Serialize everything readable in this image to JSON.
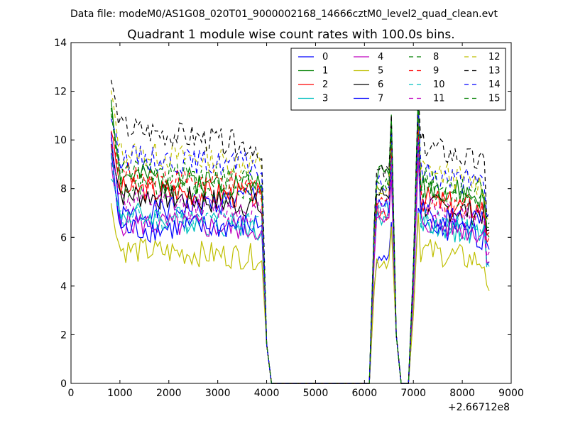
{
  "header": {
    "subtitle": "Data file: modeM0/AS1G08_020T01_9000002168_14666cztM0_level2_quad_clean.evt"
  },
  "chart_data": {
    "type": "line",
    "title": "Quadrant 1 module wise count rates with 100.0s bins.",
    "xlabel": "",
    "ylabel": "",
    "x_offset_label": "+2.66712e8",
    "xlim": [
      0,
      9000
    ],
    "ylim": [
      0,
      14
    ],
    "x_ticks": [
      0,
      1000,
      2000,
      3000,
      4000,
      5000,
      6000,
      7000,
      8000,
      9000
    ],
    "y_ticks": [
      0,
      2,
      4,
      6,
      8,
      10,
      12,
      14
    ],
    "legend_position": "top-right",
    "legend_columns": 4,
    "series": [
      {
        "name": "0",
        "color": "#0000ff",
        "dash": "solid",
        "seed": 1,
        "levels": {
          "a": 10.3,
          "b": 6.8,
          "c": 10.0,
          "d": 8.3,
          "e": 7.2,
          "f": 6.4,
          "g": 5.0
        }
      },
      {
        "name": "1",
        "color": "#008000",
        "dash": "solid",
        "seed": 2,
        "levels": {
          "a": 11.7,
          "b": 8.5,
          "c": 9.5,
          "d": 8.0,
          "e": 12.0,
          "f": 8.2,
          "g": 6.0
        }
      },
      {
        "name": "2",
        "color": "#ff0000",
        "dash": "solid",
        "seed": 3,
        "levels": {
          "a": 10.5,
          "b": 8.0,
          "c": 9.8,
          "d": 7.5,
          "e": 9.8,
          "f": 7.6,
          "g": 6.2
        }
      },
      {
        "name": "3",
        "color": "#00bfbf",
        "dash": "solid",
        "seed": 4,
        "levels": {
          "a": 8.6,
          "b": 7.0,
          "c": 9.6,
          "d": 6.0,
          "e": 9.5,
          "f": 6.6,
          "g": 4.8
        }
      },
      {
        "name": "4",
        "color": "#bf00bf",
        "dash": "solid",
        "seed": 5,
        "levels": {
          "a": 8.9,
          "b": 6.6,
          "c": 9.6,
          "d": 6.2,
          "e": 9.2,
          "f": 6.7,
          "g": 5.0
        }
      },
      {
        "name": "5",
        "color": "#bfbf00",
        "dash": "solid",
        "seed": 6,
        "levels": {
          "a": 7.3,
          "b": 5.5,
          "c": 5.5,
          "d": 5.0,
          "e": 7.0,
          "f": 5.5,
          "g": 3.8
        }
      },
      {
        "name": "6",
        "color": "#000000",
        "dash": "solid",
        "seed": 7,
        "levels": {
          "a": 9.8,
          "b": 7.8,
          "c": 9.0,
          "d": 7.0,
          "e": 10.8,
          "f": 7.3,
          "g": 6.3
        }
      },
      {
        "name": "7",
        "color": "#0000ff",
        "dash": "solid",
        "seed": 8,
        "levels": {
          "a": 9.5,
          "b": 6.3,
          "c": 10.2,
          "d": 6.6,
          "e": 10.2,
          "f": 7.0,
          "g": 5.5
        }
      },
      {
        "name": "8",
        "color": "#008000",
        "dash": "dashed",
        "seed": 9,
        "levels": {
          "a": 11.2,
          "b": 8.0,
          "c": 9.8,
          "d": 7.8,
          "e": 11.5,
          "f": 8.0,
          "g": 6.4
        }
      },
      {
        "name": "9",
        "color": "#ff0000",
        "dash": "dashed",
        "seed": 10,
        "levels": {
          "a": 10.0,
          "b": 8.6,
          "c": 9.4,
          "d": 7.7,
          "e": 10.5,
          "f": 7.6,
          "g": 6.0
        }
      },
      {
        "name": "10",
        "color": "#00bfbf",
        "dash": "dashed",
        "seed": 11,
        "levels": {
          "a": 9.2,
          "b": 6.8,
          "c": 9.0,
          "d": 6.5,
          "e": 10.0,
          "f": 6.8,
          "g": 4.7
        }
      },
      {
        "name": "11",
        "color": "#bf00bf",
        "dash": "dashed",
        "seed": 12,
        "levels": {
          "a": 10.0,
          "b": 7.5,
          "c": 9.2,
          "d": 6.8,
          "e": 10.0,
          "f": 7.4,
          "g": 5.4
        }
      },
      {
        "name": "12",
        "color": "#bfbf00",
        "dash": "dashed",
        "seed": 13,
        "levels": {
          "a": 12.0,
          "b": 9.5,
          "c": 10.2,
          "d": 8.7,
          "e": 11.0,
          "f": 8.8,
          "g": 6.7
        }
      },
      {
        "name": "13",
        "color": "#000000",
        "dash": "dashed",
        "seed": 14,
        "levels": {
          "a": 12.5,
          "b": 10.5,
          "c": 11.0,
          "d": 9.2,
          "e": 12.0,
          "f": 9.8,
          "g": 7.0
        }
      },
      {
        "name": "14",
        "color": "#0000ff",
        "dash": "dashed",
        "seed": 15,
        "levels": {
          "a": 11.0,
          "b": 9.3,
          "c": 10.4,
          "d": 8.7,
          "e": 11.3,
          "f": 8.7,
          "g": 6.8
        }
      },
      {
        "name": "15",
        "color": "#008000",
        "dash": "dashed",
        "seed": 16,
        "levels": {
          "a": 11.5,
          "b": 8.7,
          "c": 10.1,
          "d": 8.2,
          "e": 11.6,
          "f": 8.4,
          "g": 6.6
        }
      }
    ]
  }
}
